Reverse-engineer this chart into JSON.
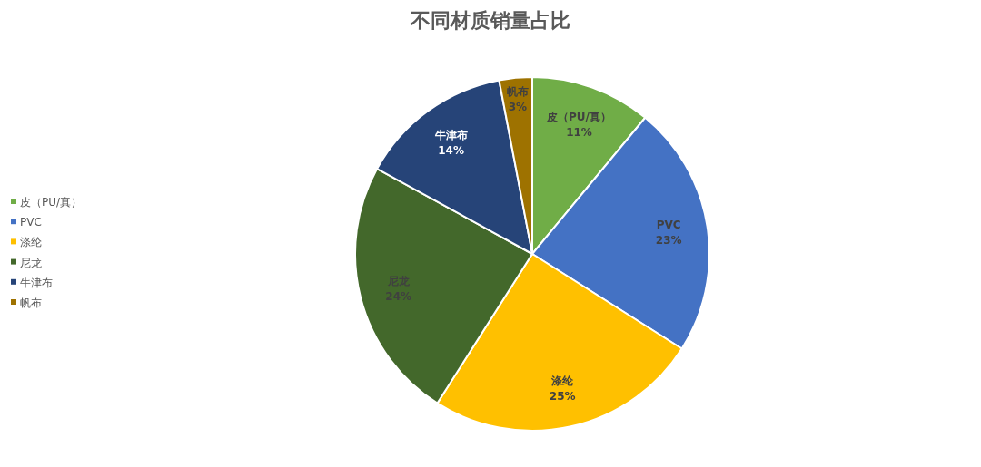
{
  "chart_data": {
    "type": "pie",
    "title": "不同材质销量占比",
    "categories": [
      "皮（PU/真）",
      "PVC",
      "涤纶",
      "尼龙",
      "牛津布",
      "帆布"
    ],
    "values": [
      11,
      23,
      25,
      24,
      14,
      3
    ],
    "colors": [
      "#70ad47",
      "#4472c4",
      "#ffc000",
      "#43682b",
      "#264478",
      "#9e7200"
    ],
    "value_labels": [
      "11%",
      "23%",
      "25%",
      "24%",
      "14%",
      "3%"
    ],
    "legend": "left"
  }
}
